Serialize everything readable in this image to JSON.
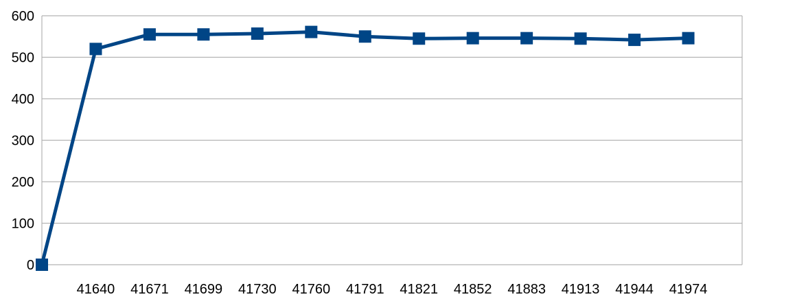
{
  "chart_data": {
    "type": "line",
    "title": "",
    "xlabel": "",
    "ylabel": "",
    "categories": [
      "",
      "41640",
      "41671",
      "41699",
      "41730",
      "41760",
      "41791",
      "41821",
      "41852",
      "41883",
      "41913",
      "41944",
      "41974"
    ],
    "series": [
      {
        "values": [
          0,
          520,
          555,
          555,
          557,
          561,
          550,
          545,
          546,
          546,
          545,
          542,
          546
        ]
      }
    ],
    "ylim": [
      0,
      600
    ],
    "yticks": [
      "0",
      "100",
      "200",
      "300",
      "400",
      "500",
      "600"
    ],
    "grid": true,
    "legend": "none",
    "marker": "square",
    "line_color": "#004586",
    "grid_color": "#b3b3b3"
  }
}
